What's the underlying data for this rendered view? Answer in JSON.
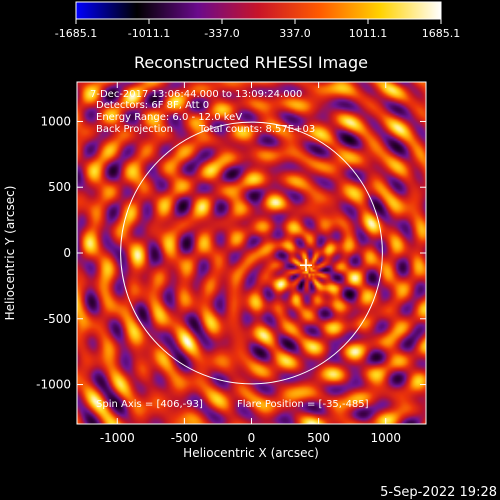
{
  "colorbar": {
    "ticks": [
      "-1685.1",
      "-1011.1",
      "-337.0",
      "337.0",
      "1011.1",
      "1685.1"
    ],
    "stops": [
      "#0000ff",
      "#000000",
      "#6a0a8c",
      "#c81428",
      "#ff5a00",
      "#ffd200",
      "#ffffff"
    ]
  },
  "chart_data": {
    "type": "heatmap",
    "title": "Reconstructed RHESSI Image",
    "xlabel": "Heliocentric X (arcsec)",
    "ylabel": "Heliocentric Y (arcsec)",
    "xlim": [
      -1300,
      1300
    ],
    "ylim": [
      -1300,
      1300
    ],
    "xticks": [
      "-1000",
      "-500",
      "0",
      "500",
      "1000"
    ],
    "yticks": [
      "-1000",
      "-500",
      "0",
      "500",
      "1000"
    ],
    "xtick_values": [
      -1000,
      -500,
      0,
      500,
      1000
    ],
    "ytick_values": [
      -1000,
      -500,
      0,
      500,
      1000
    ],
    "value_range": [
      -1685.1,
      1685.1
    ],
    "solar_limb": {
      "center": [
        0,
        0
      ],
      "radius": 975
    },
    "marker": {
      "x": 406,
      "y": -93
    },
    "annotations": {
      "time": "7-Dec-2017 13:06:44.000 to 13:09:24.000",
      "detectors": "Detectors: 6F 8F, Att 0",
      "energy": "Energy Range: 6.0 - 12.0 keV",
      "method": "Back Projection",
      "counts": "Total counts: 8.57E+03",
      "spin_axis": "Spin Axis = [406,-93]",
      "flare_position": "Flare Position = [-35,-485]"
    }
  },
  "footer": {
    "timestamp": "5-Sep-2022 19:28"
  }
}
